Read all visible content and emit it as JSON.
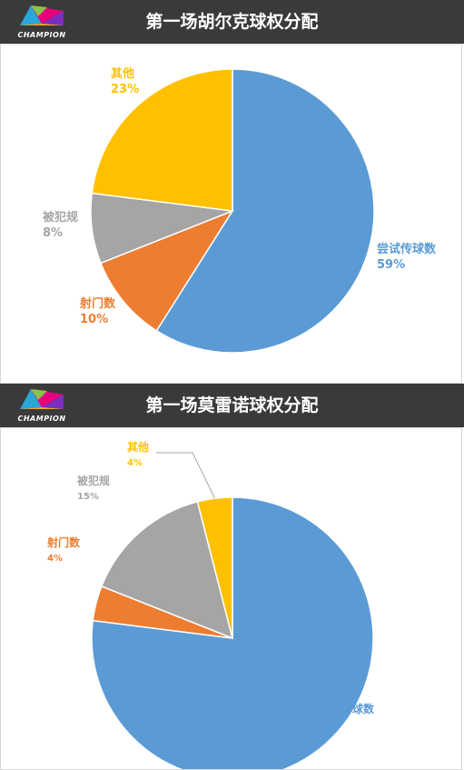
{
  "logo": {
    "text": "CHAMPION"
  },
  "chart_data": [
    {
      "type": "pie",
      "title": "第一场胡尔克球权分配",
      "slices": [
        {
          "label": "尝试传球数",
          "percent_label": "59%",
          "value": 59,
          "color": "#5b9bd5"
        },
        {
          "label": "射门数",
          "percent_label": "10%",
          "value": 10,
          "color": "#ed7d31"
        },
        {
          "label": "被犯规",
          "percent_label": "8%",
          "value": 8,
          "color": "#a5a5a5"
        },
        {
          "label": "其他",
          "percent_label": "23%",
          "value": 23,
          "color": "#ffc000"
        }
      ]
    },
    {
      "type": "pie",
      "title": "第一场莫雷诺球权分配",
      "slices": [
        {
          "label": "尝试传球数",
          "percent_label": "77%",
          "value": 77,
          "color": "#5b9bd5"
        },
        {
          "label": "射门数",
          "percent_label": "4%",
          "value": 4,
          "color": "#ed7d31"
        },
        {
          "label": "被犯规",
          "percent_label": "15%",
          "value": 15,
          "color": "#a5a5a5"
        },
        {
          "label": "其他",
          "percent_label": "4%",
          "value": 4,
          "color": "#ffc000"
        }
      ]
    }
  ]
}
